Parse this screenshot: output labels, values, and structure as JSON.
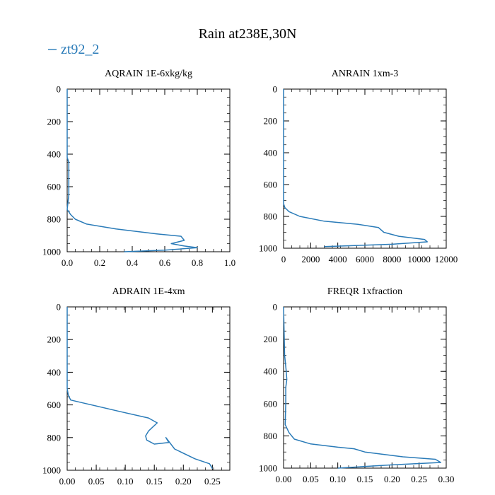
{
  "figure": {
    "title": "Rain at238E,30N",
    "legend": {
      "label": "zt92_2",
      "color": "#2a7bb8",
      "placement": "top-left"
    }
  },
  "chart_data": [
    {
      "type": "line",
      "title": "AQRAIN  1E-6xkg/kg",
      "xlim": [
        0,
        1.0
      ],
      "ylim": [
        0,
        1000
      ],
      "y_inverted": true,
      "xticks": [
        "0.0",
        "0.2",
        "0.4",
        "0.6",
        "0.8",
        "1.0"
      ],
      "xtick_values": [
        0,
        0.2,
        0.4,
        0.6,
        0.8,
        1.0
      ],
      "yticks": [
        "0",
        "200",
        "400",
        "600",
        "800",
        "1000"
      ],
      "ytick_values": [
        0,
        200,
        400,
        600,
        800,
        1000
      ],
      "series": [
        {
          "name": "zt92_2",
          "x": [
            0.0,
            0.0,
            0.0,
            0.0,
            0.01,
            0.01,
            0.01,
            0.01,
            0.0,
            0.02,
            0.05,
            0.12,
            0.3,
            0.55,
            0.7,
            0.72,
            0.64,
            0.72,
            0.8,
            0.6,
            0.35
          ],
          "y": [
            0,
            200,
            400,
            420,
            450,
            500,
            560,
            650,
            740,
            770,
            800,
            830,
            860,
            890,
            905,
            930,
            950,
            965,
            975,
            990,
            1000
          ]
        }
      ]
    },
    {
      "type": "line",
      "title": "ANRAIN  1xm-3",
      "xlim": [
        0,
        12000
      ],
      "ylim": [
        0,
        1000
      ],
      "y_inverted": true,
      "xticks": [
        "0",
        "2000",
        "4000",
        "6000",
        "8000",
        "10000",
        "12000"
      ],
      "xtick_values": [
        0,
        2000,
        4000,
        6000,
        8000,
        10000,
        12000
      ],
      "yticks": [
        "0",
        "200",
        "400",
        "600",
        "800",
        "1000"
      ],
      "ytick_values": [
        0,
        200,
        400,
        600,
        800,
        1000
      ],
      "series": [
        {
          "name": "zt92_2",
          "x": [
            0,
            0,
            0,
            0,
            100,
            400,
            1200,
            3000,
            5500,
            7000,
            7400,
            8500,
            10400,
            10600,
            8000,
            3000
          ],
          "y": [
            0,
            400,
            600,
            720,
            745,
            770,
            800,
            830,
            850,
            870,
            900,
            925,
            945,
            960,
            975,
            990
          ]
        }
      ]
    },
    {
      "type": "line",
      "title": "ADRAIN  1E-4xm",
      "xlim": [
        0,
        0.28
      ],
      "ylim": [
        0,
        1000
      ],
      "y_inverted": true,
      "xticks": [
        "0.00",
        "0.05",
        "0.10",
        "0.15",
        "0.20",
        "0.25"
      ],
      "xtick_values": [
        0,
        0.05,
        0.1,
        0.15,
        0.2,
        0.25
      ],
      "yticks": [
        "0",
        "200",
        "400",
        "600",
        "800",
        "1000"
      ],
      "ytick_values": [
        0,
        200,
        400,
        600,
        800,
        1000
      ],
      "series": [
        {
          "name": "zt92_2",
          "x": [
            0.0,
            0.0,
            0.0,
            0.002,
            0.006,
            0.03,
            0.09,
            0.14,
            0.155,
            0.14,
            0.135,
            0.137,
            0.15,
            0.175,
            0.17,
            0.185,
            0.22,
            0.245,
            0.25
          ],
          "y": [
            0,
            300,
            500,
            540,
            570,
            590,
            640,
            680,
            710,
            760,
            790,
            815,
            840,
            830,
            800,
            870,
            930,
            960,
            990
          ]
        }
      ]
    },
    {
      "type": "line",
      "title": "FREQR  1xfraction",
      "xlim": [
        0,
        0.3
      ],
      "ylim": [
        0,
        1000
      ],
      "y_inverted": true,
      "xticks": [
        "0.00",
        "0.05",
        "0.10",
        "0.15",
        "0.20",
        "0.25",
        "0.30"
      ],
      "xtick_values": [
        0,
        0.05,
        0.1,
        0.15,
        0.2,
        0.25,
        0.3
      ],
      "yticks": [
        "0",
        "200",
        "400",
        "600",
        "800",
        "1000"
      ],
      "ytick_values": [
        0,
        200,
        400,
        600,
        800,
        1000
      ],
      "series": [
        {
          "name": "zt92_2",
          "x": [
            0.0,
            0.002,
            0.005,
            0.006,
            0.004,
            0.004,
            0.003,
            0.01,
            0.02,
            0.05,
            0.1,
            0.13,
            0.15,
            0.22,
            0.28,
            0.29,
            0.2,
            0.1
          ],
          "y": [
            0,
            300,
            400,
            450,
            500,
            600,
            730,
            780,
            820,
            850,
            870,
            880,
            900,
            930,
            945,
            965,
            980,
            1000
          ]
        }
      ]
    }
  ]
}
